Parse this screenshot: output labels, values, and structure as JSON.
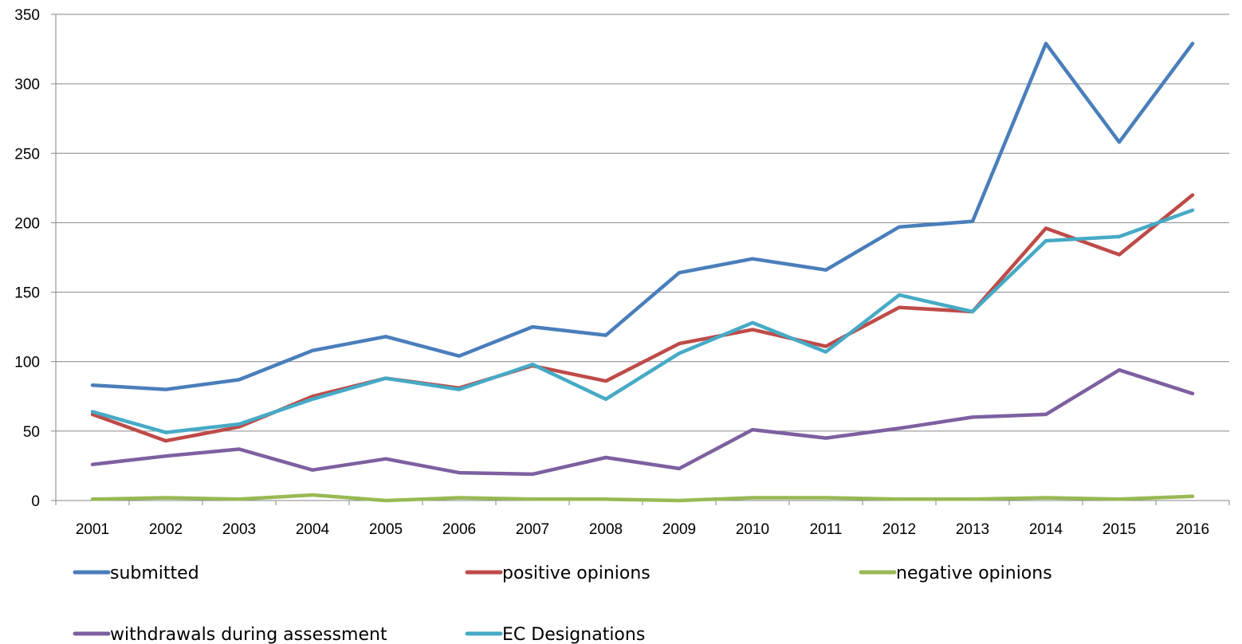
{
  "chart_data": {
    "type": "line",
    "title": "",
    "xlabel": "",
    "ylabel": "",
    "categories": [
      "2001",
      "2002",
      "2003",
      "2004",
      "2005",
      "2006",
      "2007",
      "2008",
      "2009",
      "2010",
      "2011",
      "2012",
      "2013",
      "2014",
      "2015",
      "2016"
    ],
    "ylim": [
      0,
      350
    ],
    "yticks": [
      0,
      50,
      100,
      150,
      200,
      250,
      300,
      350
    ],
    "ytick_labels": [
      "0",
      "50",
      "100",
      "150",
      "200",
      "250",
      "300",
      "350"
    ],
    "grid": "horizontal",
    "legend_position": "bottom",
    "series": [
      {
        "name": "submitted",
        "color": "#4a7ebb",
        "values": [
          83,
          80,
          87,
          108,
          118,
          104,
          125,
          119,
          164,
          174,
          166,
          197,
          201,
          329,
          258,
          329
        ]
      },
      {
        "name": "positive opinions",
        "color": "#be4b48",
        "values": [
          62,
          43,
          53,
          75,
          88,
          81,
          97,
          86,
          113,
          123,
          111,
          139,
          136,
          196,
          177,
          220
        ]
      },
      {
        "name": "negative opinions",
        "color": "#98b954",
        "values": [
          1,
          2,
          1,
          4,
          0,
          2,
          1,
          1,
          0,
          2,
          2,
          1,
          1,
          2,
          1,
          3
        ]
      },
      {
        "name": "withdrawals during assessment",
        "color": "#7d60a0",
        "values": [
          26,
          32,
          37,
          22,
          30,
          20,
          19,
          31,
          23,
          51,
          45,
          52,
          60,
          62,
          94,
          77
        ]
      },
      {
        "name": "EC Designations",
        "color": "#46aac5",
        "values": [
          64,
          49,
          55,
          73,
          88,
          80,
          98,
          73,
          106,
          128,
          107,
          148,
          136,
          187,
          190,
          209
        ]
      }
    ]
  }
}
